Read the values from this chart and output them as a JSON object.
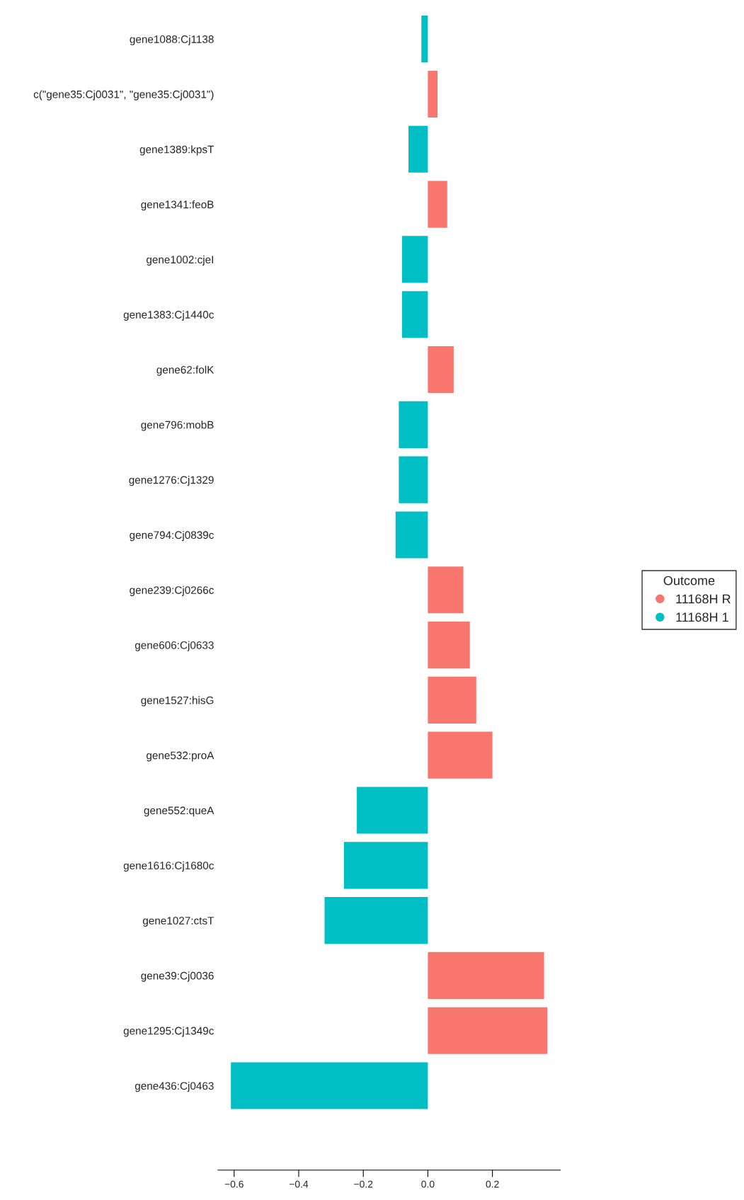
{
  "chart_data": {
    "type": "bar",
    "orientation": "horizontal",
    "categories": [
      "gene1088:Cj1138",
      "c(\"gene35:Cj0031\", \"gene35:Cj0031\")",
      "gene1389:kpsT",
      "gene1341:feoB",
      "gene1002:cjeI",
      "gene1383:Cj1440c",
      "gene62:folK",
      "gene796:mobB",
      "gene1276:Cj1329",
      "gene794:Cj0839c",
      "gene239:Cj0266c",
      "gene606:Cj0633",
      "gene1527:hisG",
      "gene532:proA",
      "gene552:queA",
      "gene1616:Cj1680c",
      "gene1027:ctsT",
      "gene39:Cj0036",
      "gene1295:Cj1349c",
      "gene436:Cj0463"
    ],
    "series": [
      {
        "name": "11168H R",
        "color": "#f8766d",
        "values": [
          null,
          0.03,
          null,
          0.06,
          null,
          null,
          0.08,
          null,
          null,
          null,
          0.11,
          0.13,
          0.15,
          0.2,
          null,
          null,
          null,
          0.36,
          0.37,
          null
        ]
      },
      {
        "name": "11168H 1",
        "color": "#00bfc4",
        "values": [
          -0.02,
          null,
          -0.06,
          null,
          -0.08,
          -0.08,
          null,
          -0.09,
          -0.09,
          -0.1,
          null,
          null,
          null,
          null,
          -0.22,
          -0.26,
          -0.32,
          null,
          null,
          -0.61
        ]
      }
    ],
    "xlim": [
      -0.65,
      0.41
    ],
    "xticks": [
      -0.6,
      -0.4,
      -0.2,
      {
        "value": 0,
        "label": "0.0"
      },
      0.2
    ],
    "legend_title": "Outcome",
    "legend": "right",
    "grid": false
  }
}
